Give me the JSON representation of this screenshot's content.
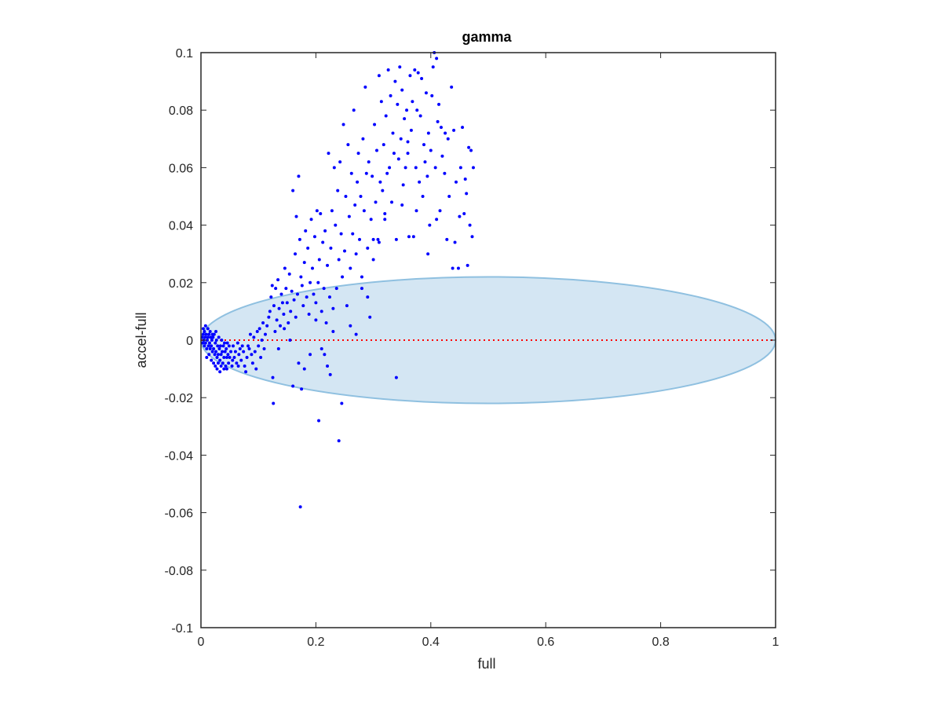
{
  "chart_data": {
    "type": "scatter",
    "title": "gamma",
    "xlabel": "full",
    "ylabel": "accel-full",
    "xlim": [
      0,
      1
    ],
    "ylim": [
      -0.1,
      0.1
    ],
    "xticks": [
      0,
      0.2,
      0.4,
      0.6,
      0.8,
      1
    ],
    "xtick_labels": [
      "0",
      "0.2",
      "0.4",
      "0.6",
      "0.8",
      "1"
    ],
    "yticks": [
      -0.1,
      -0.08,
      -0.06,
      -0.04,
      -0.02,
      0,
      0.02,
      0.04,
      0.06,
      0.08,
      0.1
    ],
    "ytick_labels": [
      "-0.1",
      "-0.08",
      "-0.06",
      "-0.04",
      "-0.02",
      "0",
      "0.02",
      "0.04",
      "0.06",
      "0.08",
      "0.1"
    ],
    "grid": false,
    "colors": {
      "points": "#0000ff",
      "zero_line": "#ff0000",
      "ellipse_fill": "#d4e6f3",
      "ellipse_edge": "#8fc0e0",
      "axes": "#262626"
    },
    "ellipse": {
      "center": [
        0.5,
        0
      ],
      "semi_axes": [
        0.5,
        0.022
      ]
    },
    "reference_line": {
      "y": 0,
      "x": [
        0,
        1
      ],
      "style": "dotted"
    },
    "points": [
      [
        0.002,
        0.001
      ],
      [
        0.003,
        -0.001
      ],
      [
        0.004,
        0.002
      ],
      [
        0.005,
        0.0
      ],
      [
        0.006,
        -0.002
      ],
      [
        0.007,
        0.001
      ],
      [
        0.008,
        -0.001
      ],
      [
        0.009,
        0.002
      ],
      [
        0.01,
        -0.003
      ],
      [
        0.011,
        0.0
      ],
      [
        0.012,
        0.001
      ],
      [
        0.013,
        -0.002
      ],
      [
        0.014,
        0.002
      ],
      [
        0.015,
        -0.001
      ],
      [
        0.016,
        -0.003
      ],
      [
        0.017,
        0.001
      ],
      [
        0.018,
        -0.002
      ],
      [
        0.019,
        0.0
      ],
      [
        0.02,
        -0.004
      ],
      [
        0.021,
        0.001
      ],
      [
        0.022,
        -0.003
      ],
      [
        0.023,
        0.002
      ],
      [
        0.024,
        -0.005
      ],
      [
        0.025,
        -0.001
      ],
      [
        0.026,
        -0.004
      ],
      [
        0.027,
        0.0
      ],
      [
        0.028,
        -0.006
      ],
      [
        0.029,
        -0.002
      ],
      [
        0.03,
        -0.005
      ],
      [
        0.031,
        0.001
      ],
      [
        0.032,
        -0.003
      ],
      [
        0.033,
        -0.007
      ],
      [
        0.034,
        -0.002
      ],
      [
        0.035,
        -0.005
      ],
      [
        0.036,
        0.0
      ],
      [
        0.037,
        -0.004
      ],
      [
        0.038,
        -0.008
      ],
      [
        0.039,
        -0.002
      ],
      [
        0.04,
        -0.006
      ],
      [
        0.041,
        -0.001
      ],
      [
        0.042,
        -0.004
      ],
      [
        0.043,
        -0.009
      ],
      [
        0.044,
        -0.003
      ],
      [
        0.045,
        -0.006
      ],
      [
        0.046,
        -0.001
      ],
      [
        0.047,
        -0.005
      ],
      [
        0.048,
        -0.008
      ],
      [
        0.049,
        -0.002
      ],
      [
        0.05,
        -0.006
      ],
      [
        0.052,
        -0.004
      ],
      [
        0.054,
        -0.009
      ],
      [
        0.056,
        -0.002
      ],
      [
        0.058,
        -0.006
      ],
      [
        0.06,
        -0.004
      ],
      [
        0.062,
        -0.008
      ],
      [
        0.064,
        -0.001
      ],
      [
        0.066,
        -0.005
      ],
      [
        0.068,
        -0.003
      ],
      [
        0.07,
        -0.007
      ],
      [
        0.072,
        -0.002
      ],
      [
        0.074,
        -0.004
      ],
      [
        0.076,
        -0.009
      ],
      [
        0.078,
        -0.011
      ],
      [
        0.08,
        -0.006
      ],
      [
        0.082,
        -0.002
      ],
      [
        0.084,
        -0.003
      ],
      [
        0.086,
        0.002
      ],
      [
        0.088,
        -0.005
      ],
      [
        0.09,
        -0.008
      ],
      [
        0.092,
        0.001
      ],
      [
        0.094,
        -0.004
      ],
      [
        0.096,
        -0.01
      ],
      [
        0.098,
        0.003
      ],
      [
        0.1,
        -0.002
      ],
      [
        0.102,
        0.004
      ],
      [
        0.104,
        -0.006
      ],
      [
        0.106,
        0.0
      ],
      [
        0.108,
        0.006
      ],
      [
        0.11,
        -0.003
      ],
      [
        0.112,
        0.002
      ],
      [
        0.004,
        0.004
      ],
      [
        0.006,
        0.003
      ],
      [
        0.008,
        0.005
      ],
      [
        0.012,
        0.004
      ],
      [
        0.016,
        0.003
      ],
      [
        0.02,
        0.002
      ],
      [
        0.026,
        0.003
      ],
      [
        0.03,
        -0.008
      ],
      [
        0.035,
        -0.009
      ],
      [
        0.04,
        -0.01
      ],
      [
        0.01,
        -0.006
      ],
      [
        0.014,
        -0.005
      ],
      [
        0.018,
        -0.007
      ],
      [
        0.022,
        -0.008
      ],
      [
        0.025,
        -0.009
      ],
      [
        0.028,
        -0.01
      ],
      [
        0.033,
        -0.011
      ],
      [
        0.045,
        -0.01
      ],
      [
        0.055,
        -0.007
      ],
      [
        0.065,
        -0.009
      ],
      [
        0.115,
        0.005
      ],
      [
        0.118,
        0.008
      ],
      [
        0.12,
        0.01
      ],
      [
        0.122,
        0.015
      ],
      [
        0.124,
        0.019
      ],
      [
        0.125,
        -0.013
      ],
      [
        0.127,
        0.012
      ],
      [
        0.129,
        0.003
      ],
      [
        0.13,
        0.018
      ],
      [
        0.132,
        0.007
      ],
      [
        0.134,
        0.021
      ],
      [
        0.136,
        0.011
      ],
      [
        0.138,
        0.005
      ],
      [
        0.14,
        0.016
      ],
      [
        0.142,
        0.013
      ],
      [
        0.144,
        0.009
      ],
      [
        0.146,
        0.025
      ],
      [
        0.148,
        0.018
      ],
      [
        0.15,
        0.013
      ],
      [
        0.152,
        0.006
      ],
      [
        0.154,
        0.023
      ],
      [
        0.156,
        0.01
      ],
      [
        0.158,
        0.017
      ],
      [
        0.16,
        0.052
      ],
      [
        0.162,
        0.014
      ],
      [
        0.164,
        0.03
      ],
      [
        0.166,
        0.043
      ],
      [
        0.168,
        0.016
      ],
      [
        0.17,
        0.057
      ],
      [
        0.172,
        0.035
      ],
      [
        0.174,
        0.022
      ],
      [
        0.176,
        0.019
      ],
      [
        0.178,
        0.012
      ],
      [
        0.18,
        0.027
      ],
      [
        0.182,
        0.038
      ],
      [
        0.184,
        0.015
      ],
      [
        0.186,
        0.032
      ],
      [
        0.188,
        0.009
      ],
      [
        0.19,
        0.02
      ],
      [
        0.192,
        0.042
      ],
      [
        0.194,
        0.025
      ],
      [
        0.196,
        0.016
      ],
      [
        0.198,
        0.036
      ],
      [
        0.2,
        0.013
      ],
      [
        0.202,
        0.045
      ],
      [
        0.204,
        0.02
      ],
      [
        0.206,
        0.028
      ],
      [
        0.208,
        0.044
      ],
      [
        0.21,
        0.01
      ],
      [
        0.212,
        0.034
      ],
      [
        0.214,
        0.018
      ],
      [
        0.216,
        0.038
      ],
      [
        0.218,
        0.006
      ],
      [
        0.22,
        0.026
      ],
      [
        0.222,
        0.065
      ],
      [
        0.224,
        0.015
      ],
      [
        0.226,
        0.032
      ],
      [
        0.228,
        0.045
      ],
      [
        0.23,
        0.011
      ],
      [
        0.232,
        0.06
      ],
      [
        0.234,
        0.04
      ],
      [
        0.236,
        0.018
      ],
      [
        0.238,
        0.052
      ],
      [
        0.24,
        0.028
      ],
      [
        0.242,
        0.062
      ],
      [
        0.244,
        0.037
      ],
      [
        0.246,
        0.022
      ],
      [
        0.248,
        0.075
      ],
      [
        0.25,
        0.031
      ],
      [
        0.252,
        0.05
      ],
      [
        0.254,
        0.012
      ],
      [
        0.256,
        0.068
      ],
      [
        0.258,
        0.043
      ],
      [
        0.26,
        0.025
      ],
      [
        0.262,
        0.058
      ],
      [
        0.264,
        0.037
      ],
      [
        0.266,
        0.08
      ],
      [
        0.268,
        0.047
      ],
      [
        0.27,
        0.03
      ],
      [
        0.272,
        0.055
      ],
      [
        0.274,
        0.065
      ],
      [
        0.276,
        0.035
      ],
      [
        0.278,
        0.05
      ],
      [
        0.28,
        0.022
      ],
      [
        0.282,
        0.07
      ],
      [
        0.284,
        0.045
      ],
      [
        0.286,
        0.088
      ],
      [
        0.288,
        0.058
      ],
      [
        0.29,
        0.032
      ],
      [
        0.292,
        0.062
      ],
      [
        0.294,
        0.008
      ],
      [
        0.296,
        0.042
      ],
      [
        0.298,
        0.057
      ],
      [
        0.3,
        0.028
      ],
      [
        0.302,
        0.075
      ],
      [
        0.304,
        0.048
      ],
      [
        0.306,
        0.066
      ],
      [
        0.308,
        0.035
      ],
      [
        0.31,
        0.092
      ],
      [
        0.312,
        0.055
      ],
      [
        0.314,
        0.083
      ],
      [
        0.316,
        0.052
      ],
      [
        0.318,
        0.068
      ],
      [
        0.32,
        0.044
      ],
      [
        0.322,
        0.078
      ],
      [
        0.324,
        0.058
      ],
      [
        0.326,
        0.094
      ],
      [
        0.328,
        0.06
      ],
      [
        0.33,
        0.085
      ],
      [
        0.332,
        0.048
      ],
      [
        0.334,
        0.072
      ],
      [
        0.336,
        0.065
      ],
      [
        0.338,
        0.09
      ],
      [
        0.34,
        -0.013
      ],
      [
        0.342,
        0.082
      ],
      [
        0.344,
        0.063
      ],
      [
        0.346,
        0.095
      ],
      [
        0.348,
        0.07
      ],
      [
        0.35,
        0.087
      ],
      [
        0.352,
        0.054
      ],
      [
        0.354,
        0.077
      ],
      [
        0.356,
        0.06
      ],
      [
        0.358,
        0.08
      ],
      [
        0.36,
        0.069
      ],
      [
        0.362,
        0.036
      ],
      [
        0.364,
        0.092
      ],
      [
        0.366,
        0.073
      ],
      [
        0.368,
        0.083
      ],
      [
        0.37,
        0.036
      ],
      [
        0.372,
        0.094
      ],
      [
        0.374,
        0.06
      ],
      [
        0.376,
        0.08
      ],
      [
        0.378,
        0.093
      ],
      [
        0.38,
        0.055
      ],
      [
        0.382,
        0.078
      ],
      [
        0.384,
        0.091
      ],
      [
        0.386,
        0.05
      ],
      [
        0.388,
        0.068
      ],
      [
        0.39,
        0.062
      ],
      [
        0.392,
        0.086
      ],
      [
        0.394,
        0.057
      ],
      [
        0.396,
        0.072
      ],
      [
        0.398,
        0.04
      ],
      [
        0.4,
        0.066
      ],
      [
        0.402,
        0.085
      ],
      [
        0.404,
        0.095
      ],
      [
        0.406,
        0.1
      ],
      [
        0.408,
        0.06
      ],
      [
        0.41,
        0.098
      ],
      [
        0.412,
        0.076
      ],
      [
        0.414,
        0.082
      ],
      [
        0.416,
        0.045
      ],
      [
        0.418,
        0.074
      ],
      [
        0.42,
        0.064
      ],
      [
        0.424,
        0.058
      ],
      [
        0.428,
        0.035
      ],
      [
        0.43,
        0.07
      ],
      [
        0.432,
        0.05
      ],
      [
        0.436,
        0.088
      ],
      [
        0.44,
        0.073
      ],
      [
        0.444,
        0.055
      ],
      [
        0.448,
        0.025
      ],
      [
        0.45,
        0.043
      ],
      [
        0.452,
        0.06
      ],
      [
        0.455,
        0.074
      ],
      [
        0.458,
        0.044
      ],
      [
        0.46,
        0.056
      ],
      [
        0.462,
        0.051
      ],
      [
        0.464,
        0.026
      ],
      [
        0.466,
        0.067
      ],
      [
        0.468,
        0.04
      ],
      [
        0.47,
        0.066
      ],
      [
        0.472,
        0.036
      ],
      [
        0.474,
        0.06
      ],
      [
        0.425,
        0.072
      ],
      [
        0.438,
        0.025
      ],
      [
        0.442,
        0.034
      ],
      [
        0.41,
        0.042
      ],
      [
        0.395,
        0.03
      ],
      [
        0.375,
        0.045
      ],
      [
        0.16,
        -0.016
      ],
      [
        0.17,
        -0.008
      ],
      [
        0.175,
        -0.017
      ],
      [
        0.18,
        -0.01
      ],
      [
        0.19,
        -0.005
      ],
      [
        0.205,
        -0.028
      ],
      [
        0.21,
        -0.003
      ],
      [
        0.215,
        -0.005
      ],
      [
        0.22,
        -0.009
      ],
      [
        0.225,
        -0.012
      ],
      [
        0.24,
        -0.035
      ],
      [
        0.245,
        -0.022
      ],
      [
        0.173,
        -0.058
      ],
      [
        0.126,
        -0.022
      ],
      [
        0.135,
        -0.003
      ],
      [
        0.145,
        0.004
      ],
      [
        0.155,
        0.0
      ],
      [
        0.165,
        0.008
      ],
      [
        0.2,
        0.007
      ],
      [
        0.23,
        0.003
      ],
      [
        0.26,
        0.005
      ],
      [
        0.27,
        0.002
      ],
      [
        0.28,
        0.018
      ],
      [
        0.29,
        0.015
      ],
      [
        0.3,
        0.035
      ],
      [
        0.31,
        0.034
      ],
      [
        0.32,
        0.042
      ],
      [
        0.34,
        0.035
      ],
      [
        0.35,
        0.047
      ],
      [
        0.36,
        0.065
      ]
    ]
  }
}
